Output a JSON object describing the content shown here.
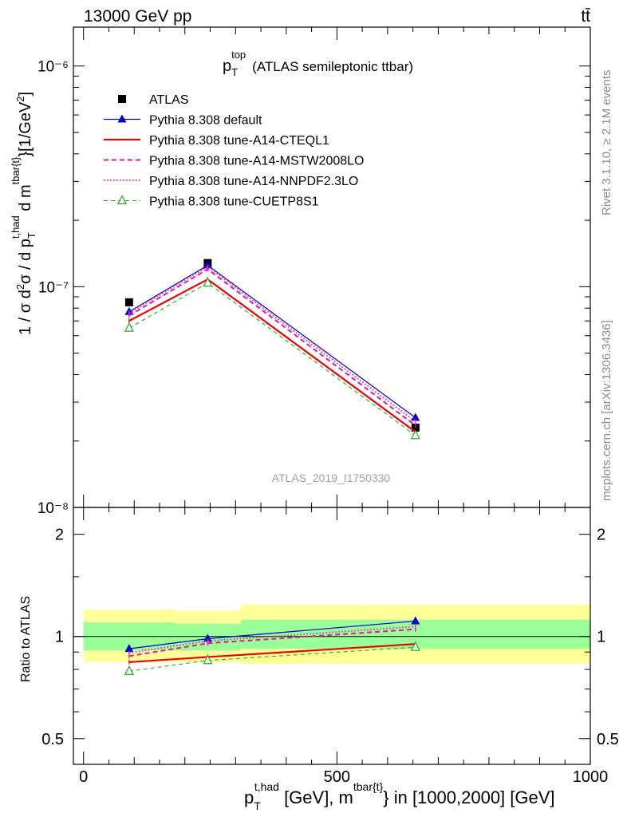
{
  "header": {
    "energy_label": "13000 GeV pp",
    "process_label": "tt̄"
  },
  "side_text": {
    "rivet": "Rivet 3.1.10, ≥ 2.1M events",
    "source": "mcplots.cern.ch [arXiv:1306.3436]"
  },
  "chart_data": [
    {
      "type": "line",
      "panel": "main",
      "title": "p_T^top (ATLAS semileptonic ttbar)",
      "title_parts": {
        "p": "p",
        "sub": "T",
        "sup": "top",
        "rest": "(ATLAS semileptonic ttbar)"
      },
      "ylabel": "1 / σ d²σ / d p_T^{t,had} d m^{tbar{t}} [1/GeV²]",
      "ylabel_parts": {
        "a": "1 / σ d",
        "b": "σ / d p",
        "sub1": "T",
        "sup1": "t,had",
        "c": " d m",
        "sup2": "tbar{t}",
        "d": "}[1/GeV",
        "e": "]"
      },
      "yscale": "log",
      "ylim": [
        1e-08,
        1.5e-06
      ],
      "xlim": [
        -20,
        1000
      ],
      "ytick_labels": [
        "10⁻⁸",
        "10⁻⁷",
        "10⁻⁶"
      ],
      "watermark": "ATLAS_2019_I1750330",
      "legend_position": "top-left",
      "series": [
        {
          "name": "ATLAS",
          "color": "#000000",
          "marker": "square",
          "line": "none",
          "x": [
            90,
            245,
            655
          ],
          "y": [
            8.5e-08,
            1.28e-07,
            2.3e-08
          ]
        },
        {
          "name": "Pythia 8.308 default",
          "color": "#0000cc",
          "marker": "triangle-filled",
          "line": "solid-thin",
          "x": [
            90,
            245,
            655
          ],
          "y": [
            7.7e-08,
            1.25e-07,
            2.55e-08
          ]
        },
        {
          "name": "Pythia 8.308 tune-A14-CTEQL1",
          "color": "#ee0000",
          "marker": "none",
          "line": "solid-thick",
          "x": [
            90,
            245,
            655
          ],
          "y": [
            7e-08,
            1.08e-07,
            2.2e-08
          ]
        },
        {
          "name": "Pythia 8.308 tune-A14-MSTW2008LO",
          "color": "#ee1493",
          "marker": "none",
          "line": "dashed",
          "x": [
            90,
            245,
            655
          ],
          "y": [
            7.4e-08,
            1.2e-07,
            2.35e-08
          ]
        },
        {
          "name": "Pythia 8.308 tune-A14-NNPDF2.3LO",
          "color": "#ee22cc",
          "marker": "none",
          "line": "dotted",
          "x": [
            90,
            245,
            655
          ],
          "y": [
            7.6e-08,
            1.23e-07,
            2.45e-08
          ]
        },
        {
          "name": "Pythia 8.308 tune-CUETP8S1",
          "color": "#22aa22",
          "marker": "triangle-open",
          "line": "dashed-thin",
          "x": [
            90,
            245,
            655
          ],
          "y": [
            6.5e-08,
            1.04e-07,
            2.12e-08
          ]
        }
      ]
    },
    {
      "type": "line",
      "panel": "ratio",
      "ylabel": "Ratio to ATLAS",
      "yscale": "log",
      "ylim": [
        0.42,
        2.4
      ],
      "xlim": [
        -20,
        1000
      ],
      "ytick_labels": [
        "0.5",
        "1",
        "2"
      ],
      "xtick_labels": [
        "0",
        "500",
        "1000"
      ],
      "xlabel_parts": {
        "p": "p",
        "sub": "T",
        "sup1": "t,had",
        "a": " [GeV], m",
        "sup2": "tbar{t}",
        "b": "} in [1000,2000] [GeV]"
      },
      "bands": [
        {
          "x": [
            0,
            180
          ],
          "inner": [
            0.91,
            1.1
          ],
          "outer": [
            0.84,
            1.2
          ]
        },
        {
          "x": [
            180,
            310
          ],
          "inner": [
            0.91,
            1.09
          ],
          "outer": [
            0.84,
            1.19
          ]
        },
        {
          "x": [
            310,
            1000
          ],
          "inner": [
            0.92,
            1.12
          ],
          "outer": [
            0.83,
            1.24
          ]
        }
      ],
      "band_colors": {
        "inner": "#99ff99",
        "outer": "#ffff99"
      },
      "series": [
        {
          "name": "Pythia 8.308 default",
          "color": "#0000cc",
          "marker": "triangle-filled",
          "line": "solid-thin",
          "x": [
            90,
            245,
            655
          ],
          "y": [
            0.92,
            0.985,
            1.11
          ]
        },
        {
          "name": "Pythia 8.308 tune-A14-CTEQL1",
          "color": "#ee0000",
          "marker": "none",
          "line": "solid-thick",
          "x": [
            90,
            245,
            655
          ],
          "y": [
            0.84,
            0.87,
            0.95
          ]
        },
        {
          "name": "Pythia 8.308 tune-A14-MSTW2008LO",
          "color": "#ee1493",
          "marker": "none",
          "line": "dashed",
          "x": [
            90,
            245,
            655
          ],
          "y": [
            0.875,
            0.955,
            1.05
          ]
        },
        {
          "name": "Pythia 8.308 tune-A14-NNPDF2.3LO",
          "color": "#ee22cc",
          "marker": "none",
          "line": "dotted",
          "x": [
            90,
            245,
            655
          ],
          "y": [
            0.895,
            0.97,
            1.07
          ]
        },
        {
          "name": "Pythia 8.308 tune-CUETP8S1",
          "color": "#22aa22",
          "marker": "triangle-open",
          "line": "dashed-thin",
          "x": [
            90,
            245,
            655
          ],
          "y": [
            0.79,
            0.85,
            0.93
          ]
        }
      ]
    }
  ]
}
